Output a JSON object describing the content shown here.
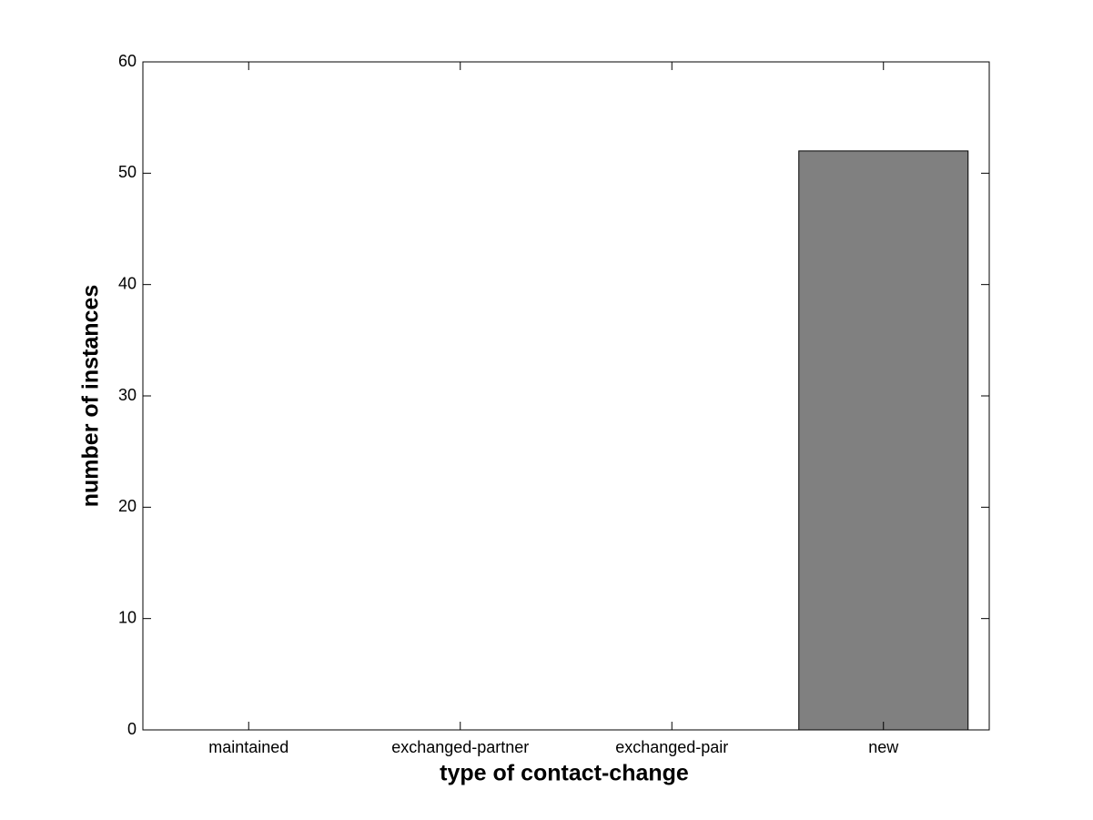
{
  "chart_data": {
    "type": "bar",
    "xlabel": "type of contact-change",
    "ylabel": "number of instances",
    "categories": [
      "maintained",
      "exchanged-partner",
      "exchanged-pair",
      "new"
    ],
    "values": [
      0,
      0,
      0,
      52
    ],
    "color": "#808080",
    "ylim": [
      0,
      60
    ],
    "yticks": [
      0,
      10,
      20,
      30,
      40,
      50,
      60
    ],
    "grid": false
  }
}
